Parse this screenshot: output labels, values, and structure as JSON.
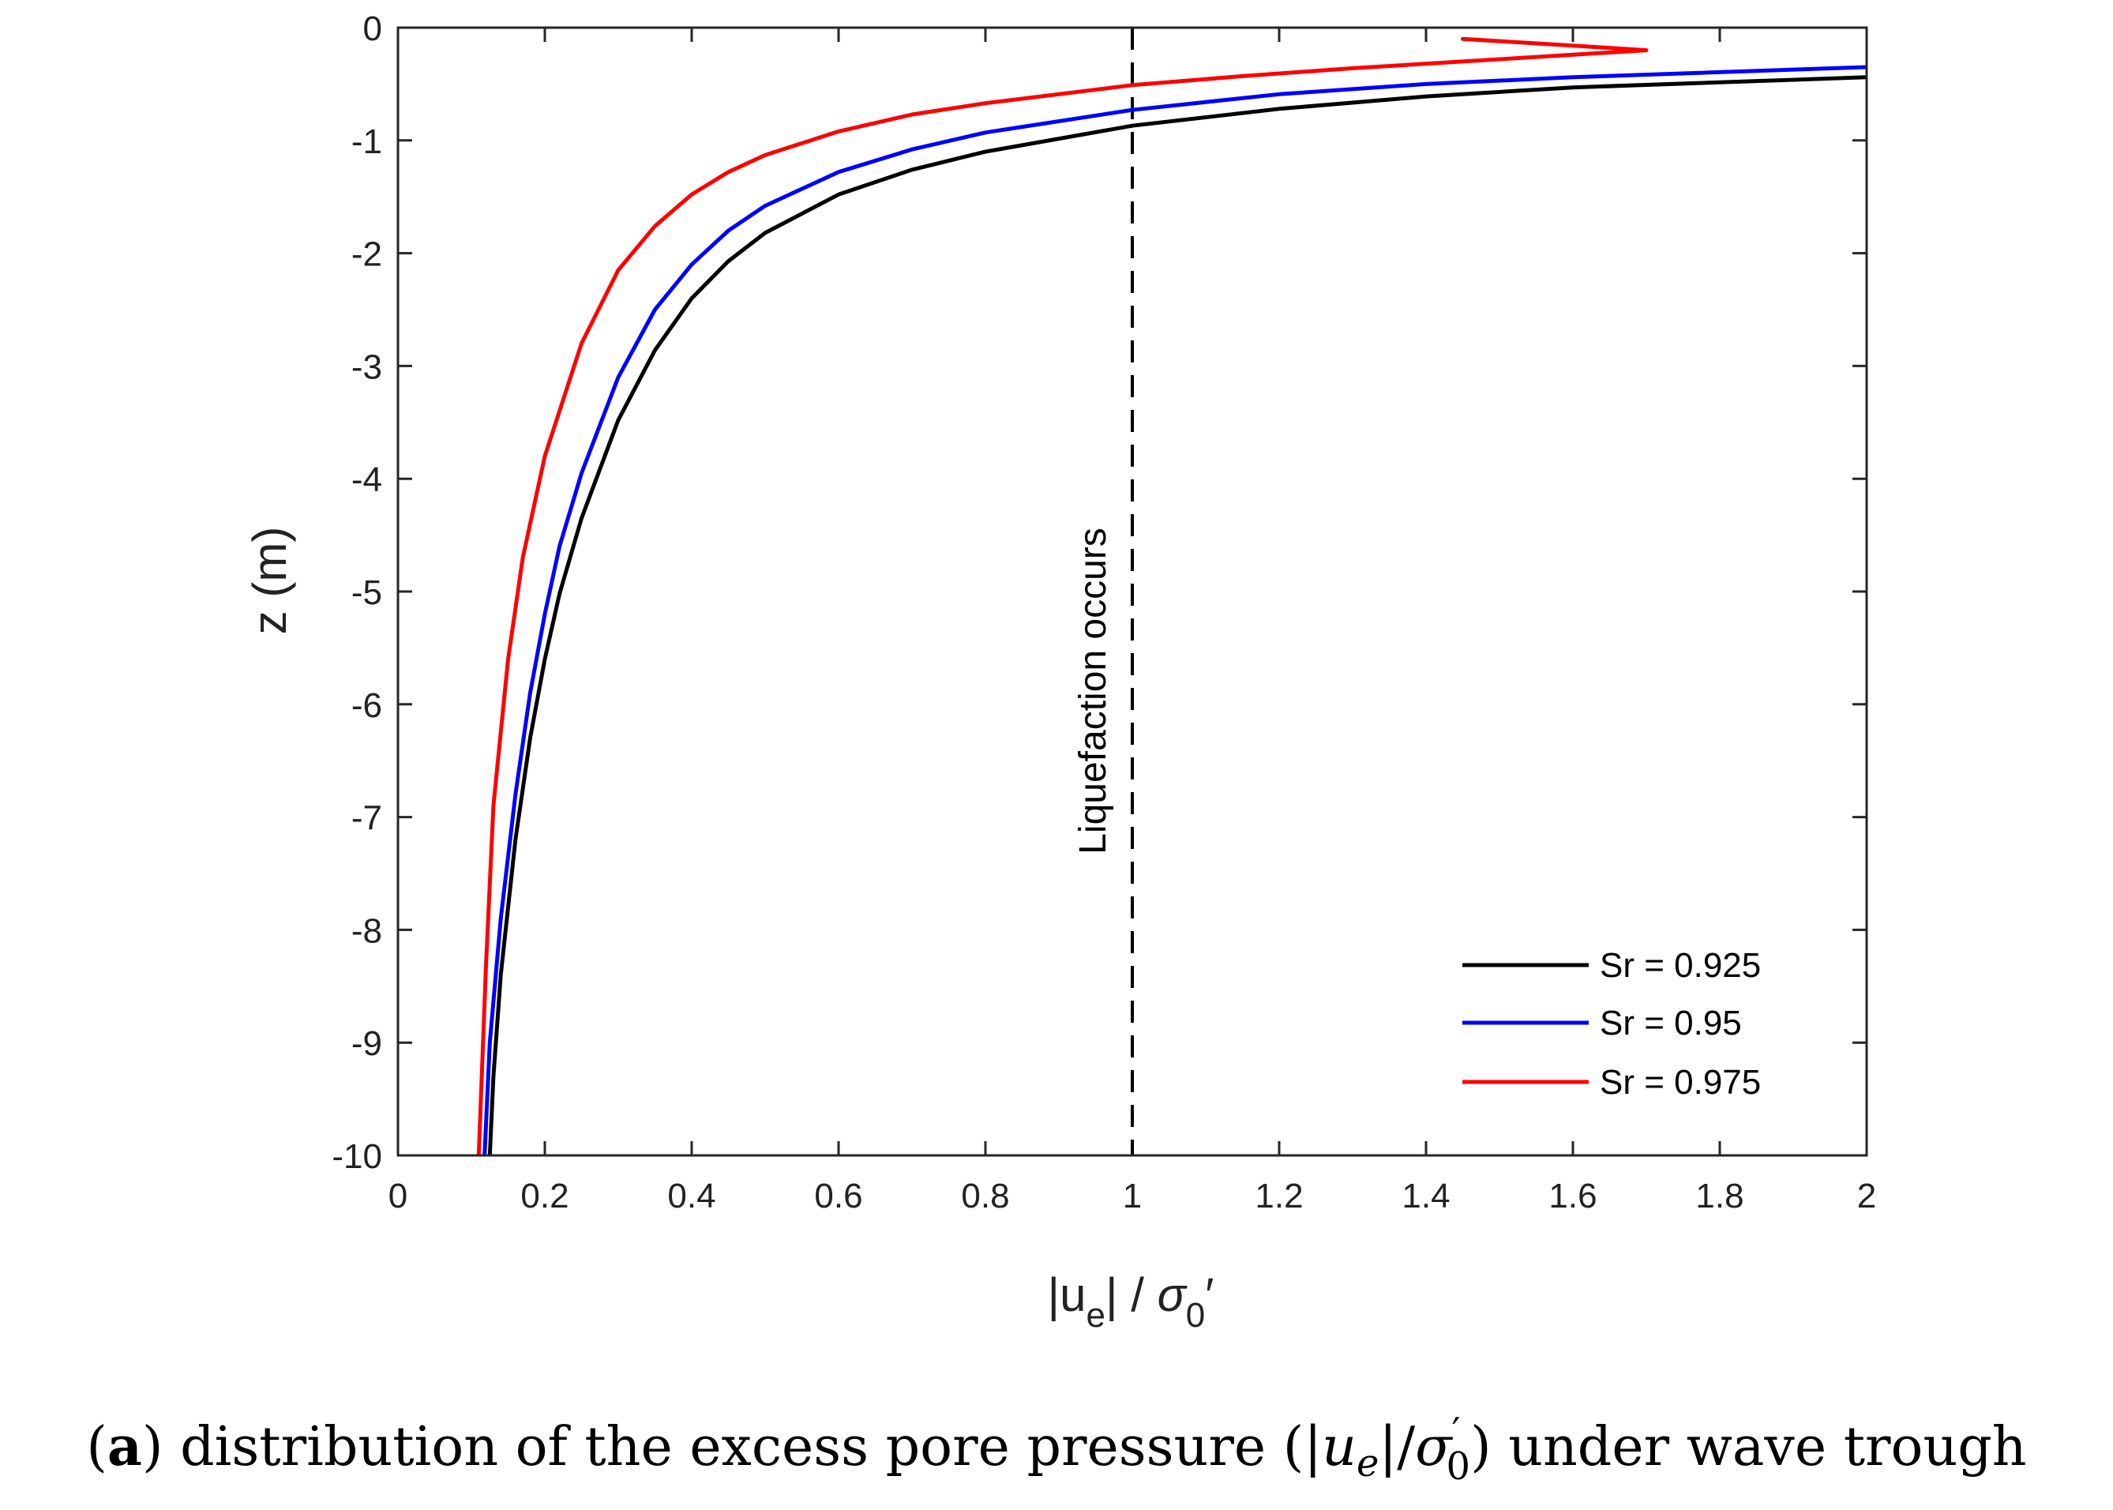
{
  "chart_data": {
    "type": "line",
    "title": "",
    "xlabel": {
      "prefix": "|u",
      "sub": "e",
      "middle": "| / ",
      "sym": "σ",
      "sub2": "0",
      "suffix": "′"
    },
    "ylabel": "z (m)",
    "xlim": [
      0,
      2
    ],
    "ylim": [
      -10,
      0
    ],
    "xticks": [
      0,
      0.2,
      0.4,
      0.6,
      0.8,
      1,
      1.2,
      1.4,
      1.6,
      1.8,
      2
    ],
    "xtick_labels": [
      "0",
      "0.2",
      "0.4",
      "0.6",
      "0.8",
      "1",
      "1.2",
      "1.4",
      "1.6",
      "1.8",
      "2"
    ],
    "yticks": [
      0,
      -1,
      -2,
      -3,
      -4,
      -5,
      -6,
      -7,
      -8,
      -9,
      -10
    ],
    "ytick_labels": [
      "0",
      "-1",
      "-2",
      "-3",
      "-4",
      "-5",
      "-6",
      "-7",
      "-8",
      "-9",
      "-10"
    ],
    "grid": false,
    "legend_position": "bottom-right",
    "series": [
      {
        "name": "Sr = 0.925",
        "color": "#000000",
        "x": [
          2.0,
          1.6,
          1.4,
          1.2,
          1.0,
          0.8,
          0.7,
          0.6,
          0.5,
          0.45,
          0.4,
          0.35,
          0.3,
          0.25,
          0.22,
          0.2,
          0.18,
          0.16,
          0.14,
          0.13,
          0.125
        ],
        "y": [
          -0.44,
          -0.53,
          -0.61,
          -0.72,
          -0.87,
          -1.1,
          -1.26,
          -1.48,
          -1.82,
          -2.07,
          -2.4,
          -2.86,
          -3.48,
          -4.35,
          -5.02,
          -5.6,
          -6.3,
          -7.2,
          -8.4,
          -9.3,
          -10.0
        ]
      },
      {
        "name": "Sr = 0.95",
        "color": "#0000ff",
        "x": [
          2.0,
          1.6,
          1.4,
          1.2,
          1.0,
          0.8,
          0.7,
          0.6,
          0.5,
          0.45,
          0.4,
          0.35,
          0.3,
          0.25,
          0.22,
          0.2,
          0.18,
          0.16,
          0.14,
          0.125,
          0.118
        ],
        "y": [
          -0.35,
          -0.44,
          -0.5,
          -0.59,
          -0.73,
          -0.93,
          -1.08,
          -1.28,
          -1.58,
          -1.8,
          -2.1,
          -2.5,
          -3.1,
          -3.95,
          -4.6,
          -5.2,
          -5.9,
          -6.8,
          -7.9,
          -9.0,
          -10.0
        ]
      },
      {
        "name": "Sr = 0.975",
        "color": "#ff0000",
        "x": [
          1.45,
          1.6,
          1.7,
          1.5,
          1.3,
          1.15,
          1.0,
          0.8,
          0.7,
          0.6,
          0.5,
          0.45,
          0.4,
          0.35,
          0.3,
          0.25,
          0.2,
          0.17,
          0.15,
          0.13,
          0.12,
          0.11
        ],
        "y": [
          -0.1,
          -0.16,
          -0.2,
          -0.28,
          -0.36,
          -0.43,
          -0.51,
          -0.67,
          -0.77,
          -0.92,
          -1.13,
          -1.28,
          -1.48,
          -1.76,
          -2.15,
          -2.8,
          -3.8,
          -4.7,
          -5.6,
          -6.9,
          -8.3,
          -10.0
        ]
      }
    ],
    "annotations": [
      {
        "text": "Liquefaction occurs",
        "x": 1,
        "orientation": "vertical",
        "line_style": "dashed"
      }
    ]
  },
  "caption": {
    "label": "a",
    "text_before": ") distribution of the excess pore pressure (|",
    "sym_u": "u",
    "sub_e": "e",
    "mid": "|/",
    "sym_sigma": "σ",
    "sup_prime": "′",
    "sub_0": "0",
    "text_after": ") under wave trough"
  }
}
